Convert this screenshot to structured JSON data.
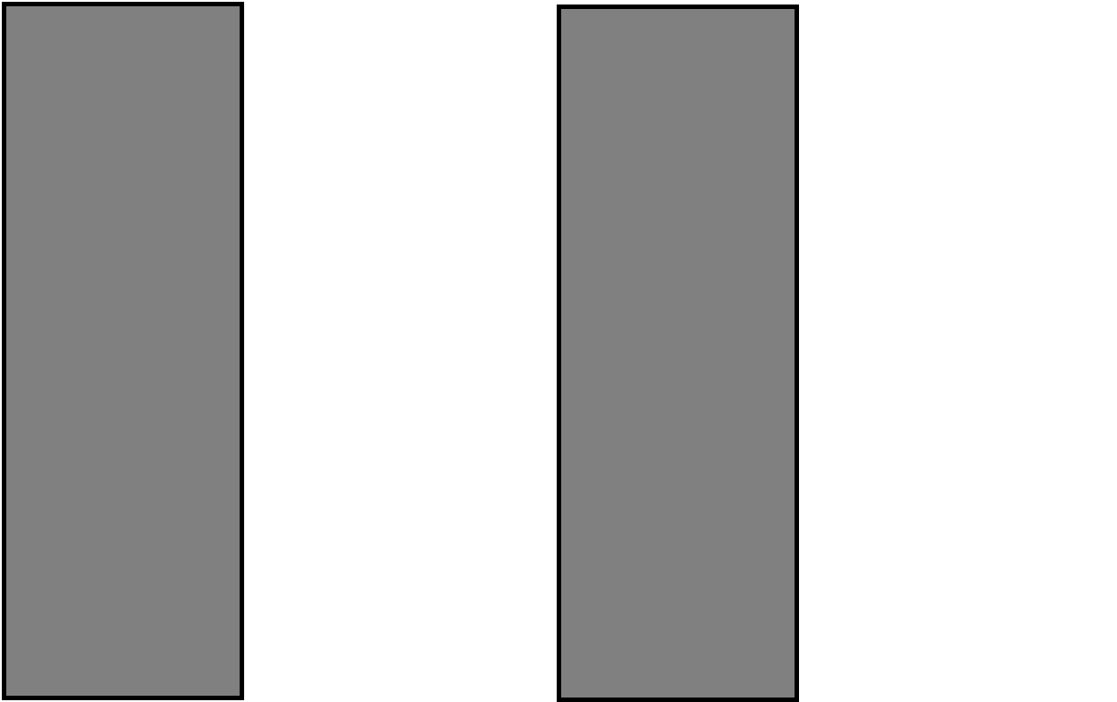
{
  "canvas": {
    "background_color": "#ffffff"
  },
  "panels": [
    {
      "name": "left-panel",
      "fill_color": "#808080",
      "border_color": "#000000"
    },
    {
      "name": "right-panel",
      "fill_color": "#808080",
      "border_color": "#000000"
    }
  ]
}
